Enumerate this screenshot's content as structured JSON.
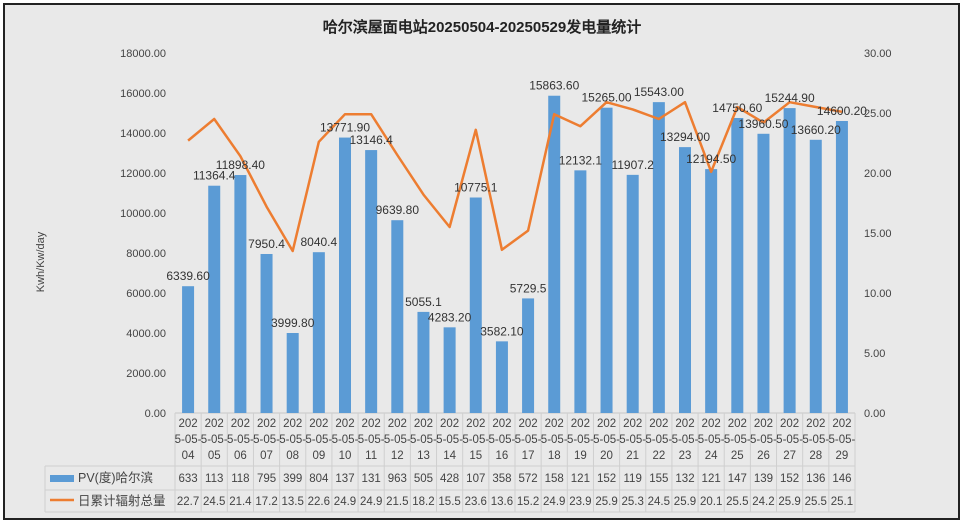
{
  "chart_data": {
    "type": "bar",
    "title": "哈尔滨屋面电站20250504-20250529发电量统计",
    "ylabel": "Kwh/Kw/day",
    "ylim": [
      0,
      18000
    ],
    "y2lim": [
      0,
      30
    ],
    "y_ticks": [
      "0.00",
      "2000.00",
      "4000.00",
      "6000.00",
      "8000.00",
      "10000.00",
      "12000.00",
      "14000.00",
      "16000.00",
      "18000.00"
    ],
    "y2_ticks": [
      "0.00",
      "5.00",
      "10.00",
      "15.00",
      "20.00",
      "25.00",
      "30.00"
    ],
    "categories": [
      "2025-05-04",
      "2025-05-05",
      "2025-05-06",
      "2025-05-07",
      "2025-05-08",
      "2025-05-09",
      "2025-05-10",
      "2025-05-11",
      "2025-05-12",
      "2025-05-13",
      "2025-05-14",
      "2025-05-15",
      "2025-05-16",
      "2025-05-17",
      "2025-05-18",
      "2025-05-19",
      "2025-05-20",
      "2025-05-21",
      "2025-05-22",
      "2025-05-23",
      "2025-05-24",
      "2025-05-25",
      "2025-05-26",
      "2025-05-27",
      "2025-05-28",
      "2025-05-29"
    ],
    "series": [
      {
        "name": "PV(度)哈尔滨",
        "kind": "bar",
        "axis": "left",
        "color": "#5b9bd5",
        "values": [
          6339.6,
          11364.4,
          11898.4,
          7950.4,
          3999.8,
          8040.4,
          13771.9,
          13146.4,
          9639.8,
          5055.1,
          4283.2,
          10775.1,
          3582.1,
          5729.5,
          15863.6,
          12132.1,
          15265.0,
          11907.2,
          15543.0,
          13294.0,
          12194.5,
          14750.6,
          13960.5,
          15244.9,
          13660.2,
          14600.2
        ],
        "labels": [
          "6339.60",
          "11364.4",
          "11898.40",
          "7950.4",
          "3999.80",
          "8040.4",
          "13771.90",
          "13146.4",
          "9639.80",
          "5055.1",
          "4283.20",
          "10775.1",
          "3582.10",
          "5729.5",
          "15863.60",
          "12132.1",
          "15265.00",
          "11907.2",
          "15543.00",
          "13294.00",
          "12194.50",
          "14750.60",
          "13960.50",
          "15244.90",
          "13660.20",
          "14600.20"
        ],
        "table_values": [
          "633",
          "113",
          "118",
          "795",
          "399",
          "804",
          "137",
          "131",
          "963",
          "505",
          "428",
          "107",
          "358",
          "572",
          "158",
          "121",
          "152",
          "119",
          "155",
          "132",
          "121",
          "147",
          "139",
          "152",
          "136",
          "146"
        ]
      },
      {
        "name": "日累计辐射总量",
        "kind": "line",
        "axis": "right",
        "color": "#ed7d31",
        "values": [
          22.7,
          24.5,
          21.4,
          17.2,
          13.5,
          22.6,
          24.9,
          24.9,
          21.5,
          18.2,
          15.5,
          23.6,
          13.6,
          15.2,
          24.9,
          23.9,
          25.9,
          25.3,
          24.5,
          25.9,
          20.1,
          25.5,
          24.2,
          25.9,
          25.5,
          25.1
        ],
        "table_values": [
          "22.7",
          "24.5",
          "21.4",
          "17.2",
          "13.5",
          "22.6",
          "24.9",
          "24.9",
          "21.5",
          "18.2",
          "15.5",
          "23.6",
          "13.6",
          "15.2",
          "24.9",
          "23.9",
          "25.9",
          "25.3",
          "24.5",
          "25.9",
          "20.1",
          "25.5",
          "24.2",
          "25.9",
          "25.5",
          "25.1"
        ]
      }
    ],
    "legend": "bottom-left data table",
    "grid": false
  }
}
